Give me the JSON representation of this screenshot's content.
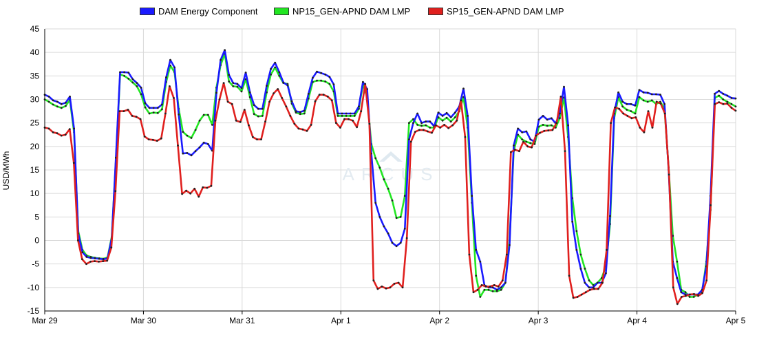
{
  "chart_data": {
    "type": "line",
    "ylabel": "USD/MWh",
    "ylim": [
      -15,
      45
    ],
    "y_ticks": [
      -15,
      -10,
      -5,
      0,
      5,
      10,
      15,
      20,
      25,
      30,
      35,
      40,
      45
    ],
    "x_ticks": [
      "Mar 29",
      "Mar 30",
      "Mar 31",
      "Apr 1",
      "Apr 2",
      "Apr 3",
      "Apr 4",
      "Apr 5"
    ],
    "x_unit": "hours since Mar 29 00:00",
    "xlim": [
      0,
      168
    ],
    "grid": true,
    "legend_position": "top",
    "watermark": "ARCUS",
    "series": [
      {
        "name": "DAM Energy Component",
        "color": "#1a1aff",
        "values": [
          31.0,
          30.6,
          29.8,
          29.5,
          29.0,
          29.3,
          30.6,
          23.8,
          1.5,
          -2.5,
          -3.5,
          -3.7,
          -3.8,
          -3.9,
          -4.0,
          -3.8,
          0.5,
          17.6,
          35.8,
          35.8,
          35.7,
          34.3,
          33.5,
          32.5,
          29.2,
          28.2,
          28.2,
          28.2,
          28.9,
          34.7,
          38.4,
          36.8,
          26.8,
          18.5,
          18.6,
          18.1,
          19.0,
          19.8,
          20.8,
          20.5,
          19.1,
          31.4,
          38.4,
          40.5,
          35.2,
          33.5,
          33.3,
          32.4,
          35.7,
          31.5,
          28.8,
          28.0,
          28.0,
          32.9,
          36.5,
          37.8,
          35.8,
          33.6,
          33.0,
          29.6,
          27.5,
          27.3,
          27.6,
          31.2,
          34.6,
          35.9,
          35.6,
          35.3,
          34.8,
          33.2,
          27.0,
          27.0,
          27.0,
          27.0,
          27.0,
          28.5,
          33.7,
          32.2,
          18.5,
          8.0,
          5.0,
          3.0,
          1.5,
          -0.5,
          -1.2,
          -0.5,
          2.5,
          21.5,
          25.0,
          27.0,
          25.0,
          25.3,
          25.3,
          24.3,
          27.2,
          26.5,
          27.1,
          26.2,
          27.2,
          28.5,
          32.3,
          26.5,
          9.5,
          -2.0,
          -4.5,
          -9.5,
          -10.0,
          -10.0,
          -10.5,
          -10.0,
          -9.0,
          -1.0,
          20.2,
          23.8,
          23.0,
          23.2,
          21.5,
          21.0,
          25.7,
          26.5,
          25.7,
          26.0,
          24.9,
          27.0,
          32.7,
          24.5,
          4.0,
          -2.0,
          -6.0,
          -9.0,
          -10.0,
          -10.0,
          -9.0,
          -9.0,
          -7.0,
          5.2,
          27.0,
          31.5,
          29.5,
          29.0,
          29.0,
          28.7,
          32.0,
          31.5,
          31.4,
          31.1,
          31.1,
          31.0,
          29.0,
          15.0,
          -4.5,
          -8.0,
          -11.0,
          -11.5,
          -11.5,
          -11.5,
          -11.5,
          -10.5,
          -5.5,
          9.5,
          31.2,
          31.8,
          31.2,
          30.8,
          30.3,
          30.2
        ]
      },
      {
        "name": "NP15_GEN-APND DAM LMP",
        "color": "#22e622",
        "values": [
          30.0,
          29.5,
          28.9,
          28.5,
          28.2,
          28.6,
          29.9,
          23.0,
          2.0,
          -2.0,
          -3.2,
          -3.5,
          -3.7,
          -3.8,
          -3.9,
          -3.6,
          0.8,
          17.0,
          35.3,
          35.0,
          34.4,
          33.6,
          32.8,
          31.1,
          28.3,
          27.0,
          27.2,
          27.1,
          27.9,
          33.7,
          37.2,
          35.8,
          28.0,
          23.1,
          22.3,
          21.8,
          23.5,
          25.5,
          26.7,
          26.7,
          24.6,
          32.5,
          37.3,
          39.7,
          33.8,
          32.8,
          32.7,
          31.7,
          34.3,
          30.5,
          26.9,
          26.4,
          26.5,
          31.5,
          35.3,
          36.8,
          35.0,
          33.5,
          33.3,
          29.1,
          27.2,
          26.9,
          27.0,
          30.2,
          33.7,
          34.0,
          34.0,
          33.8,
          33.3,
          31.7,
          26.5,
          26.5,
          26.5,
          26.5,
          26.5,
          28.0,
          33.2,
          30.5,
          20.5,
          17.5,
          15.5,
          13.0,
          11.0,
          8.5,
          4.8,
          5.0,
          9.5,
          25.0,
          25.8,
          24.6,
          24.4,
          24.5,
          24.0,
          24.0,
          26.2,
          25.5,
          26.1,
          25.3,
          26.2,
          27.5,
          30.5,
          24.0,
          8.0,
          -7.5,
          -12.0,
          -10.5,
          -10.5,
          -10.8,
          -10.8,
          -10.5,
          -9.0,
          0.0,
          19.0,
          22.5,
          21.5,
          21.0,
          20.7,
          20.5,
          24.2,
          24.6,
          24.4,
          24.5,
          24.0,
          26.0,
          30.4,
          22.0,
          9.0,
          2.0,
          -3.0,
          -6.0,
          -8.5,
          -9.5,
          -9.0,
          -8.0,
          -5.5,
          3.5,
          26.0,
          30.5,
          28.5,
          27.8,
          27.5,
          27.0,
          30.5,
          29.8,
          29.5,
          29.8,
          29.0,
          29.5,
          28.0,
          15.5,
          1.0,
          -4.5,
          -10.5,
          -11.0,
          -12.0,
          -12.0,
          -11.5,
          -11.0,
          -4.5,
          6.5,
          30.3,
          30.8,
          30.0,
          29.5,
          29.0,
          28.5
        ]
      },
      {
        "name": "SP15_GEN-APND DAM LMP",
        "color": "#e0201e",
        "values": [
          24.0,
          23.8,
          23.0,
          22.8,
          22.3,
          22.5,
          23.7,
          16.5,
          0.0,
          -4.0,
          -5.0,
          -4.5,
          -4.4,
          -4.5,
          -4.4,
          -4.3,
          -1.5,
          10.5,
          27.5,
          27.5,
          27.8,
          26.5,
          26.3,
          25.8,
          22.1,
          21.5,
          21.4,
          21.2,
          21.7,
          27.0,
          32.8,
          30.3,
          20.2,
          9.9,
          10.6,
          10.0,
          11.0,
          9.3,
          11.3,
          11.2,
          11.6,
          25.5,
          30.0,
          33.5,
          29.5,
          29.0,
          25.5,
          25.2,
          27.8,
          24.5,
          22.0,
          21.5,
          21.5,
          25.3,
          29.5,
          31.3,
          32.2,
          30.3,
          28.5,
          26.5,
          24.8,
          23.8,
          23.6,
          23.3,
          24.6,
          29.6,
          31.0,
          31.0,
          30.6,
          29.8,
          25.0,
          24.0,
          25.8,
          25.8,
          25.5,
          24.1,
          27.5,
          33.3,
          24.8,
          -8.5,
          -10.3,
          -9.8,
          -10.2,
          -10.0,
          -9.2,
          -9.0,
          -10.0,
          0.5,
          21.0,
          23.1,
          23.5,
          23.5,
          23.2,
          22.9,
          24.5,
          24.0,
          24.6,
          23.9,
          24.5,
          25.5,
          29.8,
          22.0,
          -3.0,
          -11.0,
          -10.5,
          -9.5,
          -9.8,
          -9.8,
          -9.5,
          -9.8,
          -8.5,
          -3.0,
          18.8,
          19.3,
          19.0,
          21.0,
          20.0,
          19.8,
          22.3,
          22.9,
          23.3,
          23.4,
          23.5,
          25.0,
          30.6,
          19.0,
          -7.5,
          -12.2,
          -12.0,
          -11.5,
          -11.0,
          -10.5,
          -10.3,
          -10.3,
          -9.0,
          -2.0,
          25.0,
          28.3,
          28.0,
          27.0,
          26.5,
          26.0,
          26.2,
          24.0,
          23.0,
          27.5,
          24.0,
          29.5,
          29.1,
          27.0,
          14.0,
          -10.0,
          -13.5,
          -12.0,
          -11.8,
          -11.5,
          -11.4,
          -11.8,
          -11.2,
          -8.5,
          7.5,
          29.0,
          29.4,
          29.0,
          29.1,
          28.2,
          27.6
        ]
      }
    ]
  }
}
